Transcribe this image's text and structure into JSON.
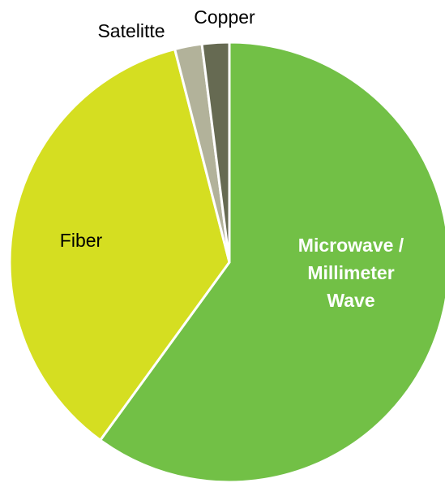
{
  "chart_data": {
    "type": "pie",
    "title": "",
    "slices": [
      {
        "label": "Microwave / Millimeter Wave",
        "label_lines": [
          "Microwave /",
          "Millimeter",
          "Wave"
        ],
        "value": 60,
        "color": "#72c046",
        "label_color": "#ffffff",
        "label_bold": true
      },
      {
        "label": "Fiber",
        "label_lines": [
          "Fiber"
        ],
        "value": 36,
        "color": "#d5de21",
        "label_color": "#000000",
        "label_bold": false
      },
      {
        "label": "Satelitte",
        "label_lines": [
          "Satelitte"
        ],
        "value": 2,
        "color": "#b2b29a",
        "label_color": "#000000",
        "label_bold": false
      },
      {
        "label": "Copper",
        "label_lines": [
          "Copper"
        ],
        "value": 2,
        "color": "#666a52",
        "label_color": "#000000",
        "label_bold": false
      }
    ],
    "start_angle_deg": 0,
    "direction": "clockwise",
    "legend": "none",
    "slice_border_color": "#ffffff"
  }
}
